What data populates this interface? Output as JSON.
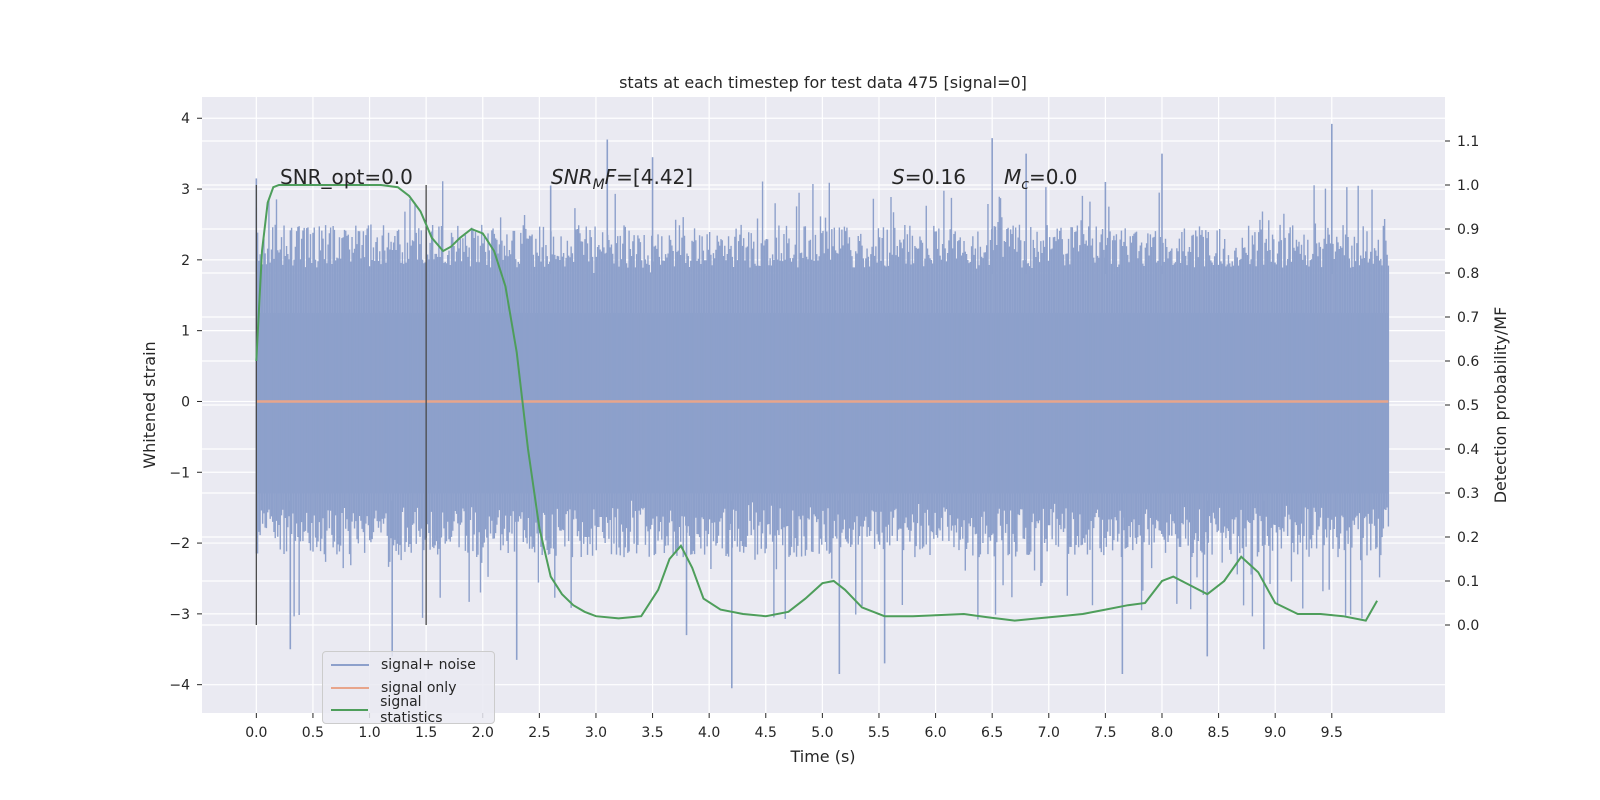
{
  "chart_data": {
    "type": "line",
    "title": "stats at each timestep for test data 475 [signal=0]",
    "xlabel": "Time (s)",
    "ylabel": "Whitened strain",
    "ylabel_right": "Detection probability/MF",
    "xlim": [
      -0.48,
      10.5
    ],
    "ylim": [
      -4.4,
      4.3
    ],
    "ylim_right": [
      -0.2,
      1.2
    ],
    "x_ticks": [
      "0.0",
      "0.5",
      "1.0",
      "1.5",
      "2.0",
      "2.5",
      "3.0",
      "3.5",
      "4.0",
      "4.5",
      "5.0",
      "5.5",
      "6.0",
      "6.5",
      "7.0",
      "7.5",
      "8.0",
      "8.5",
      "9.0",
      "9.5"
    ],
    "y_ticks": [
      "4",
      "3",
      "2",
      "1",
      "0",
      "−1",
      "−2",
      "−3",
      "−4"
    ],
    "y_ticks_right": [
      "0.0",
      "0.1",
      "0.2",
      "0.3",
      "0.4",
      "0.5",
      "0.6",
      "0.7",
      "0.8",
      "0.9",
      "1.0",
      "1.1"
    ],
    "grid": true,
    "legend_position": "lower-left",
    "colors": {
      "noise": "#8da0cb",
      "signal": "#e8a58b",
      "stats": "#4e9e5b",
      "markers": "#4a4a4a",
      "background": "#eaeaf2",
      "grid": "#ffffff"
    },
    "annotations": {
      "snr_opt": "SNR_opt=0.0",
      "snr_mf_name": "SNR",
      "snr_mf_sub": "M",
      "snr_mf_rest": "F=[4.42]",
      "s_name": "S",
      "s_rest": "=0.16",
      "mc_name": "M",
      "mc_sub": "c",
      "mc_rest": "=0.0"
    },
    "markers_x": [
      0.0,
      1.5
    ],
    "series": [
      {
        "name": "signal+ noise",
        "axis": "left",
        "x_range": [
          0.0,
          10.0
        ],
        "envelope_typical": [
          -1.4,
          1.8
        ],
        "extremes": [
          -4.05,
          3.92
        ],
        "peaks": [
          [
            0.0,
            3.15
          ],
          [
            3.1,
            3.7
          ],
          [
            6.5,
            3.72
          ],
          [
            9.5,
            3.92
          ],
          [
            3.5,
            3.45
          ],
          [
            6.8,
            3.5
          ],
          [
            8.0,
            3.5
          ],
          [
            1.55,
            2.4
          ],
          [
            2.6,
            3.05
          ],
          [
            7.5,
            3.1
          ]
        ],
        "troughs": [
          [
            0.3,
            -3.5
          ],
          [
            1.2,
            -3.6
          ],
          [
            2.3,
            -3.65
          ],
          [
            4.2,
            -4.05
          ],
          [
            5.15,
            -3.85
          ],
          [
            5.55,
            -3.7
          ],
          [
            7.65,
            -3.85
          ],
          [
            8.4,
            -3.6
          ],
          [
            8.9,
            -3.5
          ],
          [
            3.8,
            -3.3
          ]
        ]
      },
      {
        "name": "signal only",
        "axis": "left",
        "x": [
          0.0,
          10.0
        ],
        "y": [
          0.0,
          0.0
        ]
      },
      {
        "name": "signal statistics",
        "axis": "right",
        "x": [
          0.0,
          0.05,
          0.1,
          0.15,
          0.2,
          0.3,
          0.5,
          0.8,
          1.0,
          1.1,
          1.25,
          1.35,
          1.45,
          1.55,
          1.65,
          1.72,
          1.8,
          1.9,
          2.0,
          2.1,
          2.2,
          2.3,
          2.4,
          2.5,
          2.6,
          2.7,
          2.8,
          2.9,
          3.0,
          3.2,
          3.4,
          3.55,
          3.65,
          3.75,
          3.85,
          3.95,
          4.1,
          4.3,
          4.5,
          4.7,
          4.85,
          5.0,
          5.1,
          5.2,
          5.35,
          5.55,
          5.8,
          6.0,
          6.25,
          6.45,
          6.7,
          6.9,
          7.1,
          7.3,
          7.5,
          7.7,
          7.85,
          8.0,
          8.1,
          8.25,
          8.4,
          8.55,
          8.7,
          8.85,
          9.0,
          9.2,
          9.4,
          9.6,
          9.8,
          9.9
        ],
        "y": [
          0.6,
          0.85,
          0.96,
          0.995,
          1.0,
          1.0,
          1.0,
          1.0,
          1.0,
          1.0,
          0.995,
          0.975,
          0.94,
          0.88,
          0.85,
          0.86,
          0.88,
          0.9,
          0.89,
          0.85,
          0.77,
          0.62,
          0.4,
          0.22,
          0.11,
          0.07,
          0.045,
          0.03,
          0.02,
          0.015,
          0.02,
          0.08,
          0.15,
          0.18,
          0.13,
          0.06,
          0.035,
          0.025,
          0.02,
          0.03,
          0.06,
          0.095,
          0.1,
          0.08,
          0.04,
          0.02,
          0.02,
          0.022,
          0.025,
          0.018,
          0.01,
          0.015,
          0.02,
          0.025,
          0.035,
          0.045,
          0.05,
          0.1,
          0.11,
          0.09,
          0.07,
          0.1,
          0.155,
          0.12,
          0.05,
          0.025,
          0.025,
          0.02,
          0.01,
          0.055
        ]
      }
    ]
  }
}
